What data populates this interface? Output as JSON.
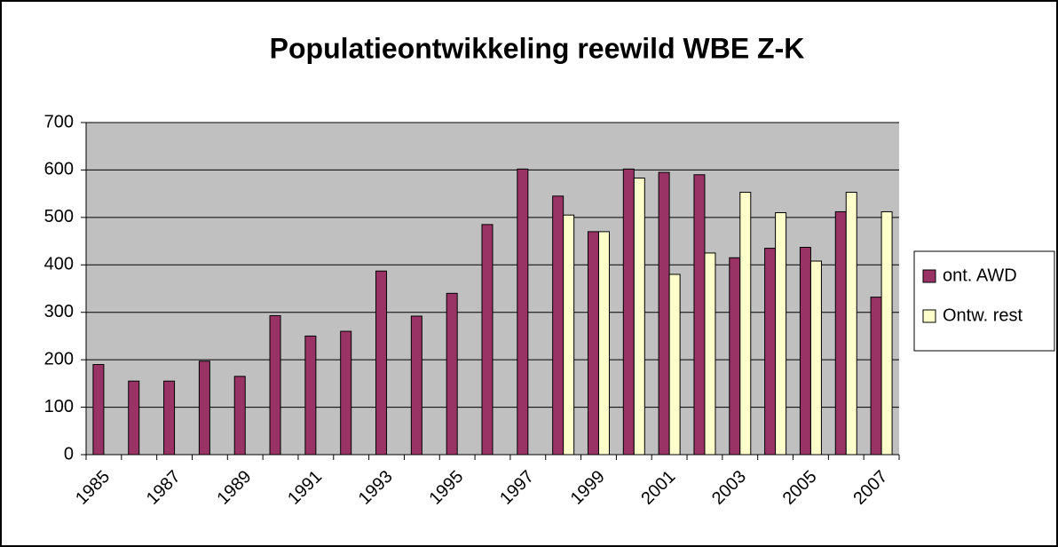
{
  "chart_data": {
    "type": "bar",
    "title": "Populatieontwikkeling reewild WBE Z-K",
    "categories": [
      "1985",
      null,
      "1987",
      null,
      "1989",
      null,
      "1991",
      null,
      "1993",
      null,
      "1995",
      null,
      "1997",
      null,
      "1999",
      null,
      "2001",
      null,
      "2003",
      null,
      "2005",
      null,
      "2007"
    ],
    "series": [
      {
        "name": "ont. AWD",
        "color": "#993366",
        "values": [
          190,
          155,
          155,
          197,
          165,
          293,
          250,
          260,
          387,
          292,
          340,
          485,
          602,
          545,
          470,
          602,
          595,
          590,
          415,
          435,
          437,
          512,
          332
        ]
      },
      {
        "name": "Ontw. rest",
        "color": "#ffffcc",
        "values": [
          null,
          null,
          null,
          null,
          null,
          null,
          null,
          null,
          null,
          null,
          null,
          null,
          null,
          505,
          470,
          583,
          380,
          425,
          553,
          510,
          408,
          553,
          512
        ]
      }
    ],
    "ylim": [
      0,
      700
    ],
    "yticks": [
      0,
      100,
      200,
      300,
      400,
      500,
      600,
      700
    ],
    "grid": true,
    "legend": "right"
  }
}
